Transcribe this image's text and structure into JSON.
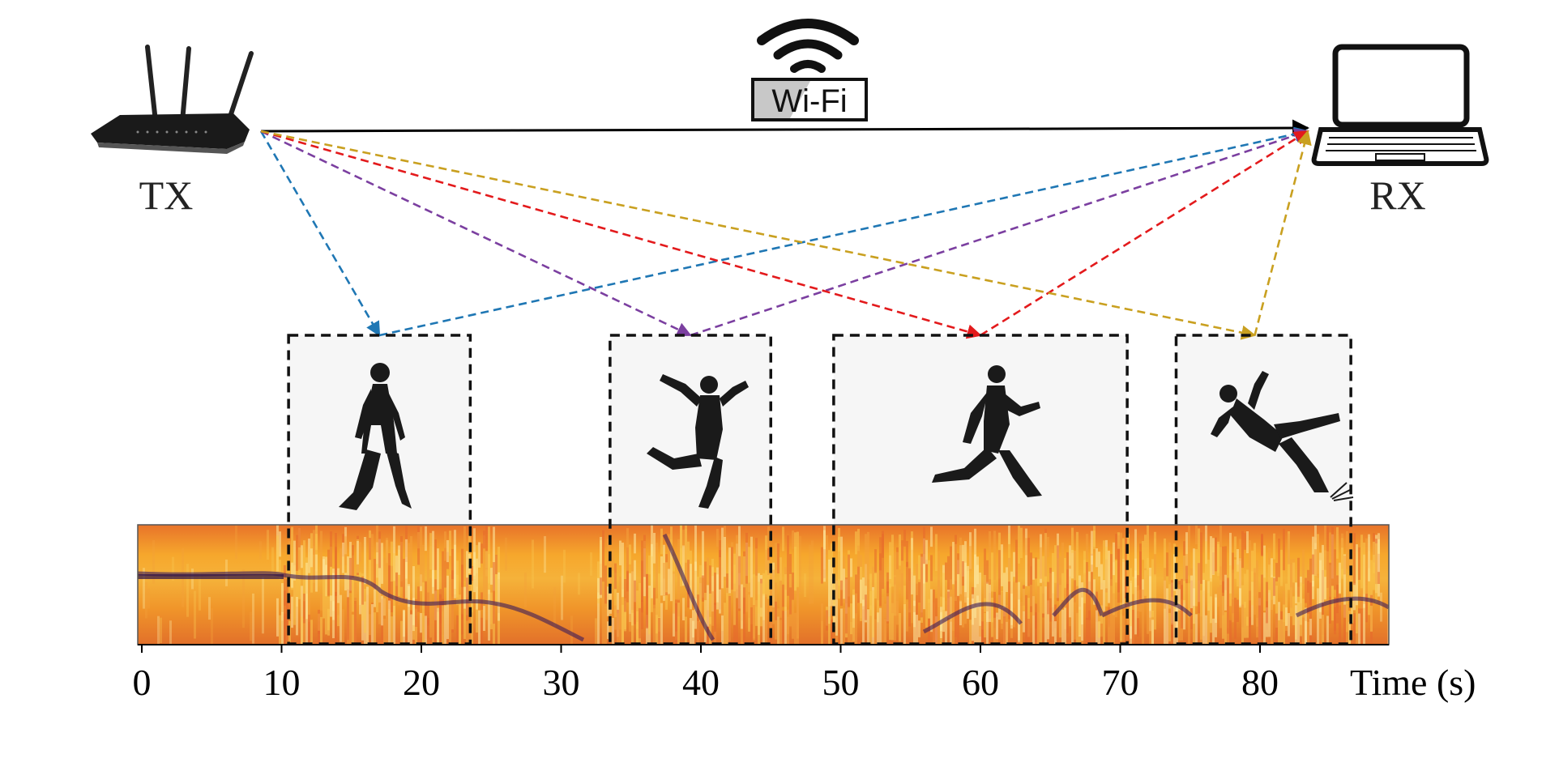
{
  "transmitter": {
    "label": "TX",
    "icon": "router-icon"
  },
  "receiver": {
    "label": "RX",
    "icon": "laptop-icon"
  },
  "wifi": {
    "label": "Wi-Fi",
    "icon": "wifi-icon"
  },
  "activities": [
    {
      "name": "walking",
      "icon": "walking-person-icon",
      "start_s": 10.5,
      "end_s": 23.5,
      "path_color": "#1f77b4"
    },
    {
      "name": "jumping",
      "icon": "jumping-person-icon",
      "start_s": 33.5,
      "end_s": 45,
      "path_color": "#7b3fa0"
    },
    {
      "name": "running",
      "icon": "running-person-icon",
      "start_s": 49.5,
      "end_s": 70.5,
      "path_color": "#e31a1c"
    },
    {
      "name": "falling",
      "icon": "falling-person-icon",
      "start_s": 74,
      "end_s": 86.5,
      "path_color": "#c9a020"
    }
  ],
  "direct_path_color": "#000000",
  "spectrogram": {
    "colormap": "inferno",
    "x_range": [
      0,
      88
    ],
    "ticks": [
      0,
      10,
      20,
      30,
      40,
      50,
      60,
      70,
      80
    ],
    "tick_labels": [
      "0",
      "10",
      "20",
      "30",
      "40",
      "50",
      "60",
      "70",
      "80"
    ],
    "x_label": "Time (s)"
  }
}
